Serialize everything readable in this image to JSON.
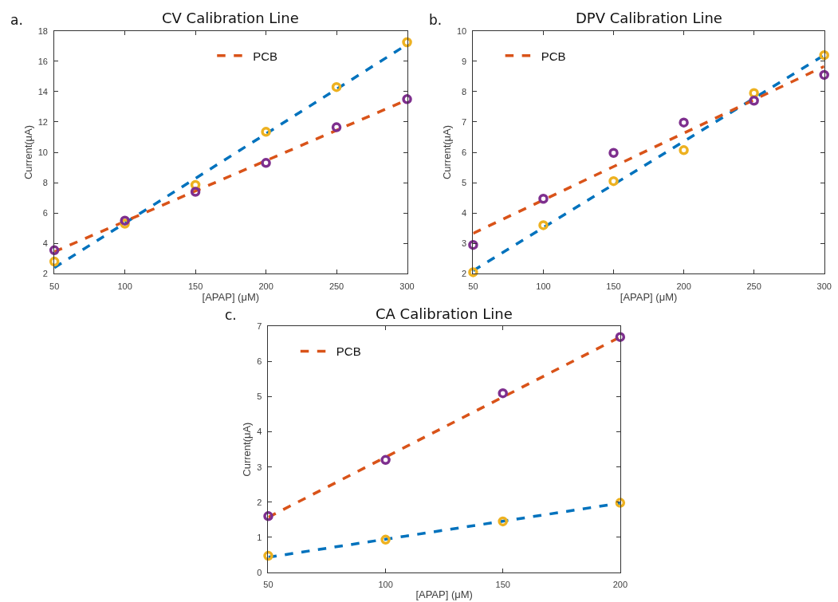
{
  "chart_data": [
    {
      "type": "scatter",
      "title": "CV Calibration Line",
      "xlabel": "[APAP] (μM)",
      "ylabel": "Current(μA)",
      "annotations": [
        "a."
      ],
      "xlim": [
        50,
        300
      ],
      "xticks": [
        50,
        100,
        150,
        200,
        250,
        300
      ],
      "ylim": [
        2,
        18
      ],
      "yticks": [
        2,
        4,
        6,
        8,
        10,
        12,
        14,
        16,
        18
      ],
      "grid": false,
      "legend": "top",
      "series": [
        {
          "type": "line",
          "color": "#0072bd",
          "line_style": "dashed",
          "marker": "none",
          "x": [
            50,
            300
          ],
          "values": [
            2.4,
            17.1
          ]
        },
        {
          "type": "line",
          "name": "PCB",
          "color": "#d95319",
          "line_style": "dashed",
          "marker": "none",
          "x": [
            50,
            300
          ],
          "values": [
            3.45,
            13.45
          ]
        },
        {
          "color": "#edb120",
          "marker": "circle",
          "x": [
            50,
            100,
            150,
            200,
            250,
            300
          ],
          "values": [
            2.8,
            5.3,
            7.85,
            11.35,
            14.3,
            17.25
          ]
        },
        {
          "color": "#7e2f8e",
          "marker": "circle",
          "x": [
            50,
            100,
            150,
            200,
            250,
            300
          ],
          "values": [
            3.55,
            5.5,
            7.4,
            9.3,
            11.65,
            13.5
          ]
        }
      ]
    },
    {
      "type": "scatter",
      "title": "DPV Calibration Line",
      "xlabel": "[APAP] (μM)",
      "ylabel": "Current(μA)",
      "annotations": [
        "b."
      ],
      "xlim": [
        50,
        300
      ],
      "xticks": [
        50,
        100,
        150,
        200,
        250,
        300
      ],
      "ylim": [
        2,
        10
      ],
      "yticks": [
        2,
        3,
        4,
        5,
        6,
        7,
        8,
        9,
        10
      ],
      "grid": false,
      "legend": "top left",
      "series": [
        {
          "type": "line",
          "color": "#0072bd",
          "line_style": "dashed",
          "marker": "none",
          "x": [
            50,
            300
          ],
          "values": [
            2.1,
            9.2
          ]
        },
        {
          "type": "line",
          "name": "PCB",
          "color": "#d95319",
          "line_style": "dashed",
          "marker": "none",
          "x": [
            50,
            300
          ],
          "values": [
            3.33,
            8.83
          ]
        },
        {
          "color": "#edb120",
          "marker": "circle",
          "x": [
            50,
            100,
            150,
            200,
            250,
            300
          ],
          "values": [
            2.05,
            3.6,
            5.05,
            6.07,
            7.95,
            9.2
          ]
        },
        {
          "color": "#7e2f8e",
          "marker": "circle",
          "x": [
            50,
            100,
            150,
            200,
            250,
            300
          ],
          "values": [
            2.95,
            4.47,
            5.98,
            6.98,
            7.7,
            8.55
          ]
        }
      ]
    },
    {
      "type": "scatter",
      "title": "CA Calibration Line",
      "xlabel": "[APAP] (μM)",
      "ylabel": "Current(μA)",
      "annotations": [
        "c."
      ],
      "xlim": [
        50,
        200
      ],
      "xticks": [
        50,
        100,
        150,
        200
      ],
      "ylim": [
        0,
        7
      ],
      "yticks": [
        0,
        1,
        2,
        3,
        4,
        5,
        6,
        7
      ],
      "grid": false,
      "legend": "top left",
      "series": [
        {
          "type": "line",
          "color": "#0072bd",
          "line_style": "dashed",
          "marker": "none",
          "x": [
            50,
            200
          ],
          "values": [
            0.43,
            1.97
          ]
        },
        {
          "type": "line",
          "name": "PCB",
          "color": "#d95319",
          "line_style": "dashed",
          "marker": "none",
          "x": [
            50,
            200
          ],
          "values": [
            1.57,
            6.7
          ]
        },
        {
          "color": "#edb120",
          "marker": "circle",
          "x": [
            50,
            100,
            150,
            200
          ],
          "values": [
            0.47,
            0.93,
            1.45,
            1.98
          ]
        },
        {
          "color": "#7e2f8e",
          "marker": "circle",
          "x": [
            50,
            100,
            150,
            200
          ],
          "values": [
            1.6,
            3.2,
            5.1,
            6.7
          ]
        }
      ]
    }
  ]
}
